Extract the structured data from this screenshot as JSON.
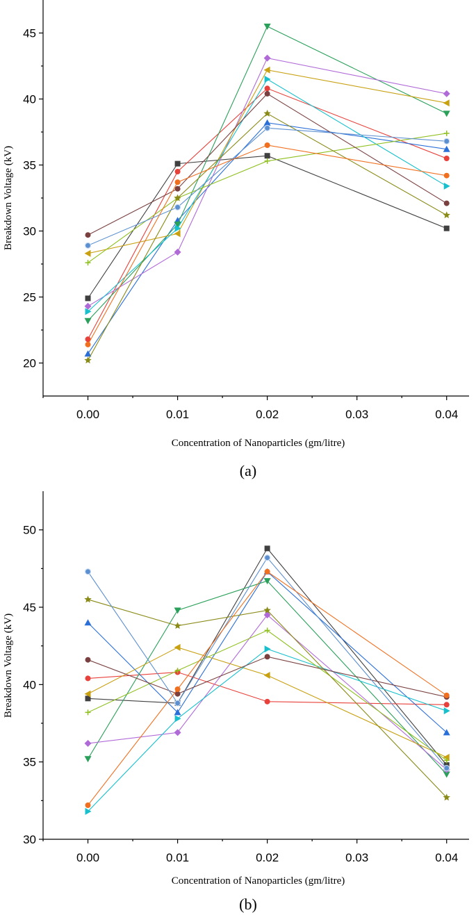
{
  "chart_data": [
    {
      "type": "line",
      "panel_label": "(a)",
      "title": "",
      "xlabel": "Concentration of Nanoparticles (gm/litre)",
      "ylabel": "Breakdown Voltage (kV)",
      "x": [
        0.0,
        0.01,
        0.02,
        0.04
      ],
      "x_tick_labels": [
        "0.00",
        "0.01",
        "0.02",
        "0.03",
        "0.04"
      ],
      "x_ticks": [
        0.0,
        0.01,
        0.02,
        0.03,
        0.04
      ],
      "xlim": [
        -0.005,
        0.0425
      ],
      "ylim": [
        17.5,
        47.5
      ],
      "y_ticks": [
        20,
        25,
        30,
        35,
        40,
        45
      ],
      "y_tick_labels": [
        "20",
        "25",
        "30",
        "35",
        "40",
        "45"
      ],
      "grid": false,
      "legend": "none",
      "series": [
        {
          "name": "S1",
          "color": "#404040",
          "marker": "square",
          "values": [
            24.9,
            35.1,
            35.7,
            30.2
          ]
        },
        {
          "name": "S2",
          "color": "#e8403a",
          "marker": "circle",
          "values": [
            21.8,
            34.5,
            40.8,
            35.5
          ]
        },
        {
          "name": "S3",
          "color": "#2a6fd8",
          "marker": "triangle-up",
          "values": [
            20.7,
            30.8,
            38.2,
            36.2
          ]
        },
        {
          "name": "S4",
          "color": "#2aa05a",
          "marker": "triangle-down",
          "values": [
            23.2,
            30.5,
            45.5,
            38.9
          ]
        },
        {
          "name": "S5",
          "color": "#b06ad8",
          "marker": "diamond",
          "values": [
            24.3,
            28.4,
            43.1,
            40.4
          ]
        },
        {
          "name": "S6",
          "color": "#c8a010",
          "marker": "triangle-left",
          "values": [
            28.3,
            29.8,
            42.2,
            39.7
          ]
        },
        {
          "name": "S7",
          "color": "#17c0cc",
          "marker": "triangle-right",
          "values": [
            23.9,
            30.2,
            41.5,
            33.4
          ]
        },
        {
          "name": "S8",
          "color": "#8fc020",
          "marker": "plus",
          "values": [
            27.6,
            32.5,
            35.3,
            37.4
          ]
        },
        {
          "name": "S9",
          "color": "#8a8a18",
          "marker": "star",
          "values": [
            20.2,
            32.5,
            38.9,
            31.2
          ]
        },
        {
          "name": "S10",
          "color": "#7a4040",
          "marker": "circle",
          "values": [
            29.7,
            33.2,
            40.4,
            32.1
          ]
        },
        {
          "name": "S11",
          "color": "#5b8fd0",
          "marker": "circle-half",
          "values": [
            28.9,
            31.8,
            37.8,
            36.8
          ]
        },
        {
          "name": "S12",
          "color": "#f07020",
          "marker": "circle",
          "values": [
            21.4,
            33.7,
            36.5,
            34.2
          ]
        }
      ]
    },
    {
      "type": "line",
      "panel_label": "(b)",
      "title": "",
      "xlabel": "Concentration of Nanoparticles (gm/litre)",
      "ylabel": "Breakdown Voltage (kV)",
      "x": [
        0.0,
        0.01,
        0.02,
        0.04
      ],
      "x_tick_labels": [
        "0.00",
        "0.01",
        "0.02",
        "0.03",
        "0.04"
      ],
      "x_ticks": [
        0.0,
        0.01,
        0.02,
        0.03,
        0.04
      ],
      "xlim": [
        -0.005,
        0.0425
      ],
      "ylim": [
        30,
        52.5
      ],
      "y_ticks": [
        30,
        35,
        40,
        45,
        50
      ],
      "y_tick_labels": [
        "30",
        "35",
        "40",
        "45",
        "50"
      ],
      "grid": false,
      "legend": "none",
      "series": [
        {
          "name": "S1",
          "color": "#404040",
          "marker": "square",
          "values": [
            39.1,
            38.8,
            48.8,
            34.8
          ]
        },
        {
          "name": "S2",
          "color": "#e8403a",
          "marker": "circle",
          "values": [
            40.4,
            40.8,
            38.9,
            38.7
          ]
        },
        {
          "name": "S3",
          "color": "#2a6fd8",
          "marker": "triangle-up",
          "values": [
            44.0,
            38.2,
            47.3,
            36.9
          ]
        },
        {
          "name": "S4",
          "color": "#2aa05a",
          "marker": "triangle-down",
          "values": [
            35.2,
            44.8,
            46.7,
            34.2
          ]
        },
        {
          "name": "S5",
          "color": "#b06ad8",
          "marker": "diamond",
          "values": [
            36.2,
            36.9,
            44.5,
            34.5
          ]
        },
        {
          "name": "S6",
          "color": "#c8a010",
          "marker": "triangle-left",
          "values": [
            39.4,
            42.4,
            40.6,
            35.3
          ]
        },
        {
          "name": "S7",
          "color": "#17c0cc",
          "marker": "triangle-right",
          "values": [
            31.8,
            37.8,
            42.3,
            38.3
          ]
        },
        {
          "name": "S8",
          "color": "#8fc020",
          "marker": "plus",
          "values": [
            38.2,
            40.9,
            43.5,
            35.1
          ]
        },
        {
          "name": "S9",
          "color": "#8a8a18",
          "marker": "star",
          "values": [
            45.5,
            43.8,
            44.8,
            32.7
          ]
        },
        {
          "name": "S10",
          "color": "#7a4040",
          "marker": "circle",
          "values": [
            41.6,
            39.4,
            41.8,
            39.2
          ]
        },
        {
          "name": "S11",
          "color": "#5b8fd0",
          "marker": "circle-half",
          "values": [
            47.3,
            38.8,
            48.2,
            34.6
          ]
        },
        {
          "name": "S12",
          "color": "#f07020",
          "marker": "circle",
          "values": [
            32.2,
            39.7,
            47.3,
            39.3
          ]
        }
      ]
    }
  ]
}
